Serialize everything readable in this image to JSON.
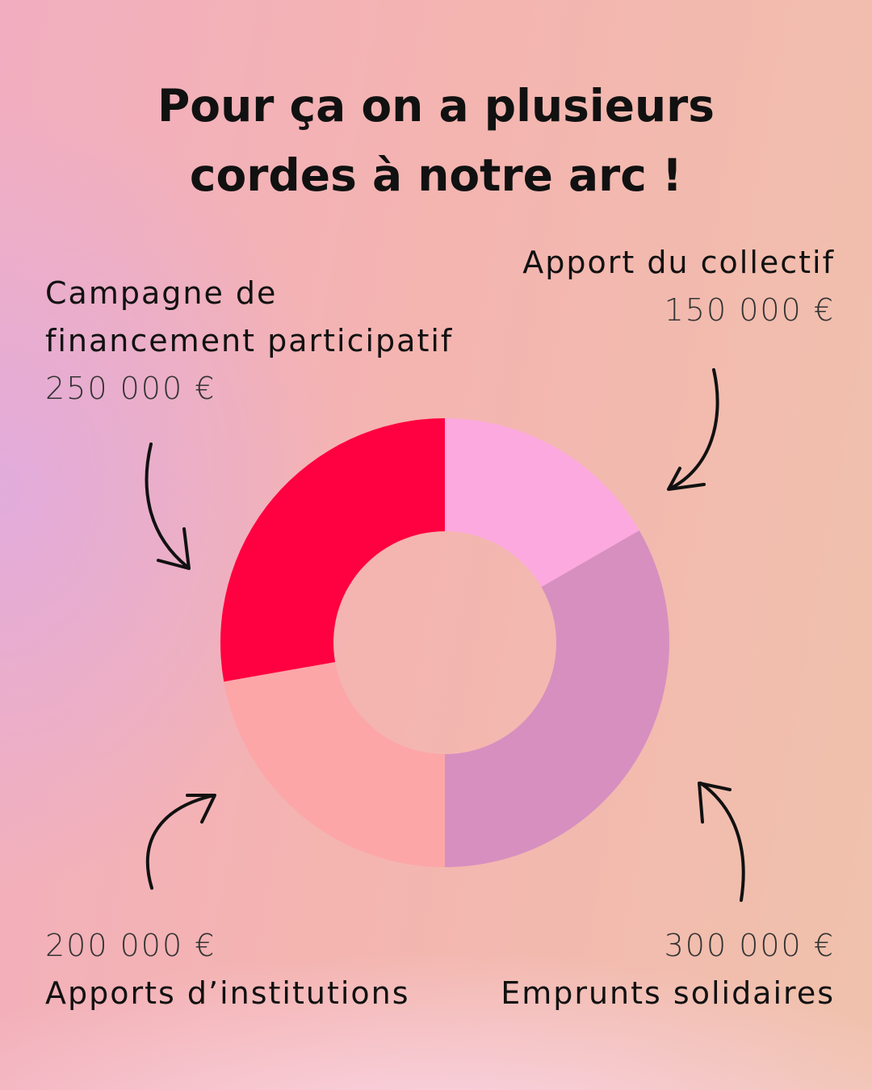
{
  "title_line1": "Pour ça on a plusieurs",
  "title_line2": "cordes à notre arc !",
  "chart_data": {
    "type": "pie",
    "donut": true,
    "unit": "€",
    "categories": [
      "Apport du collectif",
      "Emprunts solidaires",
      "Apports d’institutions",
      "Campagne de financement participatif"
    ],
    "values": [
      150000,
      300000,
      200000,
      250000
    ],
    "value_labels": [
      "150 000 €",
      "300 000 €",
      "200 000 €",
      "250 000 €"
    ],
    "colors": [
      "#FCA9DF",
      "#D78FC0",
      "#FCA6A8",
      "#FF0040"
    ],
    "legend": "annotations with arrows"
  },
  "labels": {
    "campagne_line1": "Campagne de",
    "campagne_line2": "financement participatif"
  }
}
